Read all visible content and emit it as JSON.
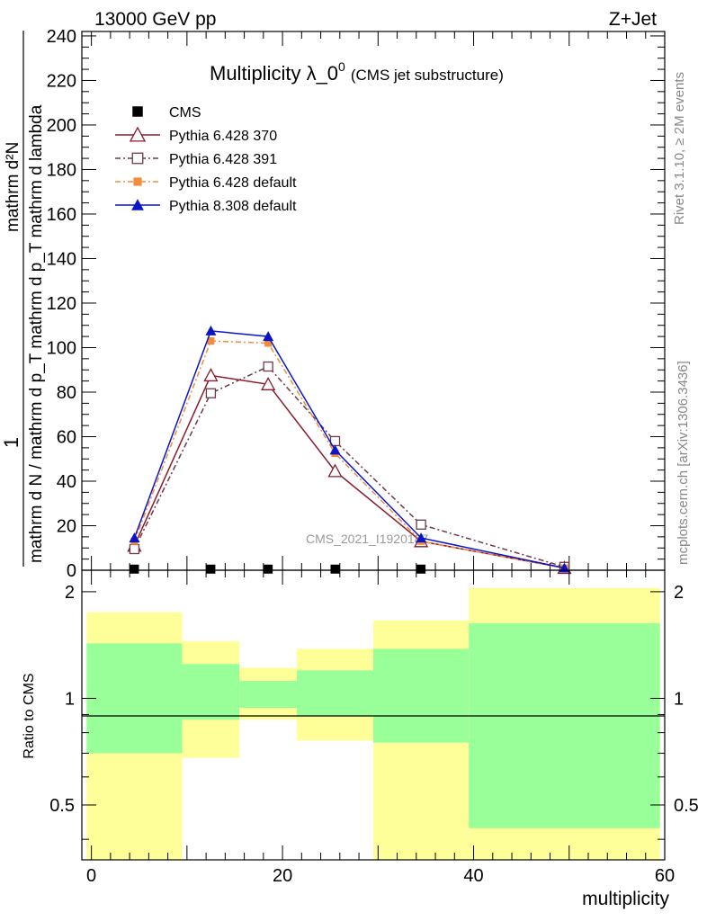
{
  "header": {
    "energy_label": "13000 GeV pp",
    "process_label": "Z+Jet"
  },
  "side_labels": {
    "rivet_version": "Rivet 3.1.10, ≥ 2M events",
    "source": "mcplots.cern.ch [arXiv:1306.3436]"
  },
  "watermark": "CMS_2021_I1920187",
  "colors": {
    "cms": "#000000",
    "p370": "#8b1a2b",
    "p391": "#6b3a48",
    "p6def": "#f28c3a",
    "p8def": "#0a14c8",
    "band_outer": "#ffff99",
    "band_inner": "#99ff99"
  },
  "chart_data": [
    {
      "type": "line",
      "title": "Multiplicity λ_0",
      "title_sup": "0",
      "title_note": "(CMS jet substructure)",
      "ylabel_numerator": "1",
      "ylabel_denominator": "mathrm d N / mathrm d p_T mathrm d p_T mathrm d lambda",
      "ylabel_extra": "mathrm d²N",
      "ylim": [
        0,
        242
      ],
      "xlim": [
        -1,
        60
      ],
      "yticks": [
        0,
        20,
        40,
        60,
        80,
        100,
        120,
        140,
        160,
        180,
        200,
        220,
        240
      ],
      "legend_position": "top-left",
      "series": [
        {
          "name": "CMS",
          "key": "cms",
          "marker": "square-filled",
          "dash": "none",
          "x": [
            4.5,
            12.5,
            18.5,
            25.5,
            34.5,
            49.5
          ],
          "values": [
            0.5,
            0.5,
            0.5,
            0.5,
            0.5,
            0.5
          ]
        },
        {
          "name": "Pythia 6.428 370",
          "key": "p370",
          "marker": "triangle-open",
          "dash": "solid",
          "x": [
            4.5,
            12.5,
            18.5,
            25.5,
            34.5,
            49.5
          ],
          "values": [
            11,
            87.5,
            83.5,
            44.5,
            13,
            1
          ]
        },
        {
          "name": "Pythia 6.428 391",
          "key": "p391",
          "marker": "square-open",
          "dash": "dashdot",
          "x": [
            4.5,
            12.5,
            18.5,
            25.5,
            34.5,
            49.5
          ],
          "values": [
            9.5,
            79.5,
            91.5,
            58,
            20.5,
            1.5
          ]
        },
        {
          "name": "Pythia 6.428 default",
          "key": "p6def",
          "marker": "square-small",
          "dash": "dashdot",
          "x": [
            4.5,
            12.5,
            18.5,
            25.5,
            34.5,
            49.5
          ],
          "values": [
            13,
            103,
            102,
            52.5,
            13,
            1
          ]
        },
        {
          "name": "Pythia 8.308 default",
          "key": "p8def",
          "marker": "triangle-filled",
          "dash": "solid",
          "x": [
            4.5,
            12.5,
            18.5,
            25.5,
            34.5,
            49.5
          ],
          "values": [
            14.5,
            107.5,
            105,
            54,
            14.5,
            1
          ]
        }
      ]
    },
    {
      "type": "area",
      "ylabel": "Ratio to CMS",
      "xlabel": "multiplicity",
      "ylim": [
        0.35,
        2.3
      ],
      "xlim": [
        -1,
        60
      ],
      "xticks": [
        0,
        20,
        40,
        60
      ],
      "yticks": [
        0.5,
        1,
        2
      ],
      "reference": 1,
      "bins": [
        {
          "x_low": -0.5,
          "x_high": 9.5,
          "outer": [
            0.3,
            1.75
          ],
          "inner": [
            0.7,
            1.43
          ]
        },
        {
          "x_low": 9.5,
          "x_high": 15.5,
          "outer": [
            0.68,
            1.45
          ],
          "inner": [
            0.87,
            1.25
          ]
        },
        {
          "x_low": 15.5,
          "x_high": 21.5,
          "outer": [
            0.87,
            1.22
          ],
          "inner": [
            0.94,
            1.12
          ]
        },
        {
          "x_low": 21.5,
          "x_high": 29.5,
          "outer": [
            0.76,
            1.38
          ],
          "inner": [
            0.89,
            1.2
          ]
        },
        {
          "x_low": 29.5,
          "x_high": 39.5,
          "outer": [
            0.3,
            1.66
          ],
          "inner": [
            0.75,
            1.38
          ]
        },
        {
          "x_low": 39.5,
          "x_high": 59.5,
          "outer": [
            0.3,
            2.05
          ],
          "inner": [
            0.43,
            1.63
          ]
        }
      ]
    }
  ]
}
